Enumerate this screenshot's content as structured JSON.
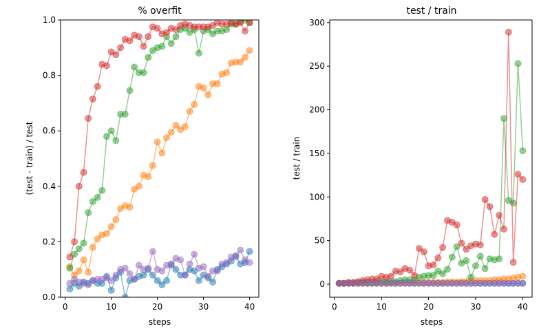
{
  "chart_data": [
    {
      "type": "line",
      "title": "% overfit",
      "xlabel": "steps",
      "ylabel": "(test - train) / test",
      "xlim": [
        -1,
        42
      ],
      "ylim": [
        0,
        1.0
      ],
      "xticks": [
        0,
        10,
        20,
        30,
        40
      ],
      "yticks": [
        0.0,
        0.2,
        0.4,
        0.6,
        0.8,
        1.0
      ],
      "ytick_labels": [
        "0.0",
        "0.2",
        "0.4",
        "0.6",
        "0.8",
        "1.0"
      ],
      "x": [
        1,
        2,
        3,
        4,
        5,
        6,
        7,
        8,
        9,
        10,
        11,
        12,
        13,
        14,
        15,
        16,
        17,
        18,
        19,
        20,
        21,
        22,
        23,
        24,
        25,
        26,
        27,
        28,
        29,
        30,
        31,
        32,
        33,
        34,
        35,
        36,
        37,
        38,
        39,
        40
      ],
      "series": [
        {
          "color": "#1f77b4",
          "values": [
            0.03,
            0.05,
            0.04,
            0.055,
            0.05,
            0.06,
            0.05,
            0.05,
            0.075,
            0.025,
            0.07,
            0.09,
            0.0,
            0.06,
            0.065,
            0.075,
            0.08,
            0.1,
            0.08,
            0.06,
            0.045,
            0.06,
            0.12,
            0.1,
            0.08,
            0.08,
            0.1,
            0.095,
            0.06,
            0.08,
            0.07,
            0.055,
            0.1,
            0.11,
            0.12,
            0.13,
            0.15,
            0.12,
            0.125,
            0.165
          ]
        },
        {
          "color": "#ff7f0e",
          "values": [
            0.11,
            0.08,
            0.095,
            0.135,
            0.09,
            0.18,
            0.21,
            0.225,
            0.23,
            0.255,
            0.28,
            0.32,
            0.33,
            0.325,
            0.39,
            0.4,
            0.44,
            0.435,
            0.475,
            0.56,
            0.52,
            0.575,
            0.595,
            0.62,
            0.605,
            0.615,
            0.67,
            0.695,
            0.76,
            0.755,
            0.73,
            0.77,
            0.77,
            0.805,
            0.81,
            0.845,
            0.848,
            0.848,
            0.865,
            0.89
          ]
        },
        {
          "color": "#2ca02c",
          "values": [
            0.105,
            0.155,
            0.175,
            0.195,
            0.305,
            0.345,
            0.36,
            0.385,
            0.58,
            0.6,
            0.565,
            0.66,
            0.66,
            0.745,
            0.83,
            0.81,
            0.81,
            0.865,
            0.89,
            0.9,
            0.905,
            0.94,
            0.915,
            0.94,
            0.965,
            0.97,
            0.955,
            0.965,
            0.88,
            0.96,
            0.965,
            0.95,
            0.96,
            0.96,
            0.965,
            0.985,
            0.985,
            0.995,
            1.0,
            0.99
          ]
        },
        {
          "color": "#d62728",
          "values": [
            0.145,
            0.2,
            0.4,
            0.45,
            0.645,
            0.715,
            0.76,
            0.84,
            0.835,
            0.885,
            0.875,
            0.9,
            0.93,
            0.925,
            0.945,
            0.94,
            0.905,
            0.94,
            0.975,
            0.97,
            0.95,
            0.955,
            0.97,
            0.965,
            0.98,
            0.985,
            0.98,
            0.975,
            0.975,
            0.975,
            0.975,
            0.98,
            0.99,
            0.985,
            0.985,
            0.99,
            0.985,
            0.99,
            0.96,
            0.99
          ]
        },
        {
          "color": "#9467bd",
          "values": [
            0.05,
            0.065,
            0.055,
            0.05,
            0.045,
            0.06,
            0.065,
            0.065,
            0.07,
            0.06,
            0.08,
            0.1,
            0.105,
            0.085,
            0.065,
            0.115,
            0.1,
            0.105,
            0.165,
            0.1,
            0.095,
            0.115,
            0.115,
            0.14,
            0.135,
            0.08,
            0.12,
            0.155,
            0.105,
            0.11,
            0.075,
            0.095,
            0.095,
            0.12,
            0.125,
            0.145,
            0.145,
            0.17,
            0.135,
            0.125
          ]
        }
      ]
    },
    {
      "type": "line",
      "title": "test / train",
      "xlabel": "steps",
      "ylabel": "test / train",
      "xlim": [
        -1,
        42
      ],
      "ylim": [
        -15,
        303
      ],
      "xticks": [
        0,
        10,
        20,
        30,
        40
      ],
      "yticks": [
        0,
        50,
        100,
        150,
        200,
        250,
        300
      ],
      "ytick_labels": [
        "0",
        "50",
        "100",
        "150",
        "200",
        "250",
        "300"
      ],
      "x": [
        1,
        2,
        3,
        4,
        5,
        6,
        7,
        8,
        9,
        10,
        11,
        12,
        13,
        14,
        15,
        16,
        17,
        18,
        19,
        20,
        21,
        22,
        23,
        24,
        25,
        26,
        27,
        28,
        29,
        30,
        31,
        32,
        33,
        34,
        35,
        36,
        37,
        38,
        39,
        40
      ],
      "series": [
        {
          "color": "#1f77b4",
          "values": [
            1,
            1,
            1,
            1,
            1,
            1,
            1,
            1,
            1,
            1,
            1,
            1,
            1,
            1,
            1,
            1,
            1,
            1,
            1,
            1,
            1,
            1,
            1,
            1,
            1,
            1,
            1,
            1,
            1,
            1,
            1,
            1,
            1,
            1,
            1,
            1,
            1,
            1,
            1,
            1
          ]
        },
        {
          "color": "#ff7f0e",
          "values": [
            1,
            1,
            1,
            1,
            1,
            1,
            1,
            1,
            1,
            1,
            1,
            1,
            1,
            1,
            1.5,
            1.5,
            1.5,
            1.5,
            2,
            2,
            2,
            2,
            2,
            2.5,
            2.5,
            2.5,
            3,
            3,
            4,
            4,
            4,
            4,
            4,
            5,
            5,
            6,
            6,
            7,
            8,
            9
          ]
        },
        {
          "color": "#2ca02c",
          "values": [
            1,
            1,
            1,
            1,
            1.5,
            2,
            2,
            2,
            2.5,
            3,
            3,
            3,
            3,
            4,
            5,
            5,
            5,
            8,
            9,
            10,
            10,
            15,
            12,
            17,
            31,
            43,
            24,
            27,
            8,
            21,
            32,
            18,
            29,
            28,
            29,
            190,
            96,
            93,
            253,
            153
          ]
        },
        {
          "color": "#d62728",
          "values": [
            1,
            1,
            2,
            2,
            3,
            4,
            5,
            6,
            6,
            9,
            8,
            9,
            15,
            14,
            18,
            16,
            10,
            41,
            37,
            21,
            22,
            30,
            42,
            73,
            71,
            68,
            47,
            40,
            44,
            46,
            45,
            97,
            89,
            57,
            79,
            63,
            289,
            25,
            126,
            120
          ]
        },
        {
          "color": "#9467bd",
          "values": [
            1,
            1,
            1,
            1,
            1,
            1,
            1,
            1,
            1,
            1,
            1,
            1,
            1,
            1,
            1,
            1,
            1,
            1,
            1,
            1,
            1,
            1,
            1,
            1,
            1,
            1,
            1,
            1,
            1,
            1,
            1,
            1,
            1,
            1,
            1,
            1,
            1,
            1,
            1,
            1
          ]
        }
      ]
    }
  ]
}
